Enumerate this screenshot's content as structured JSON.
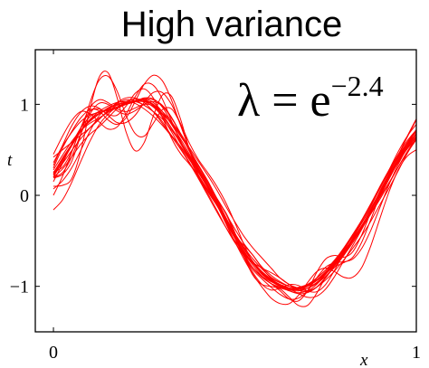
{
  "chart_data": {
    "type": "line",
    "title": "High variance",
    "xlabel": "x",
    "ylabel": "t",
    "xlim": [
      -0.05,
      1.0
    ],
    "ylim": [
      -1.5,
      1.6
    ],
    "xticks": [
      {
        "value": 0,
        "label": "0"
      },
      {
        "value": 1,
        "label": "1"
      }
    ],
    "yticks": [
      {
        "value": 1,
        "label": "1"
      },
      {
        "value": 0,
        "label": "0"
      },
      {
        "value": -1,
        "label": "−1"
      }
    ],
    "annotation": {
      "base": "λ = e",
      "exponent": "−2.4"
    },
    "grid": false,
    "legend": "none",
    "line_color": "#ff0000",
    "series_count": 20,
    "x": [
      0.0,
      0.025,
      0.05,
      0.075,
      0.1,
      0.125,
      0.15,
      0.175,
      0.2,
      0.225,
      0.25,
      0.275,
      0.3,
      0.325,
      0.35,
      0.375,
      0.4,
      0.425,
      0.45,
      0.475,
      0.5,
      0.525,
      0.55,
      0.575,
      0.6,
      0.625,
      0.65,
      0.675,
      0.7,
      0.725,
      0.75,
      0.775,
      0.8,
      0.825,
      0.85,
      0.875,
      0.9,
      0.925,
      0.95,
      0.975,
      1.0
    ],
    "series": [
      {
        "values": [
          0.22,
          0.39,
          0.55,
          0.7,
          0.83,
          0.9,
          0.95,
          1.01,
          1.05,
          1.04,
          0.99,
          0.92,
          0.81,
          0.66,
          0.54,
          0.4,
          0.2,
          0.04,
          -0.11,
          -0.27,
          -0.44,
          -0.55,
          -0.66,
          -0.8,
          -0.91,
          -0.96,
          -1.0,
          -1.02,
          -1.0,
          -0.93,
          -0.85,
          -0.77,
          -0.66,
          -0.47,
          -0.28,
          -0.1,
          0.08,
          0.28,
          0.48,
          0.65,
          0.78
        ]
      },
      {
        "values": [
          0.2,
          0.29,
          0.42,
          0.56,
          0.67,
          0.75,
          0.85,
          0.95,
          1.01,
          1.04,
          1.05,
          0.99,
          0.89,
          0.8,
          0.68,
          0.52,
          0.37,
          0.22,
          0.06,
          -0.12,
          -0.29,
          -0.45,
          -0.58,
          -0.69,
          -0.8,
          -0.91,
          -0.98,
          -1.02,
          -1.05,
          -1.01,
          -0.93,
          -0.83,
          -0.71,
          -0.58,
          -0.44,
          -0.28,
          -0.1,
          0.08,
          0.27,
          0.46,
          0.62
        ]
      },
      {
        "values": [
          0.24,
          0.41,
          0.56,
          0.71,
          0.81,
          0.89,
          0.96,
          1.0,
          1.02,
          1.03,
          0.99,
          0.92,
          0.84,
          0.72,
          0.58,
          0.43,
          0.27,
          0.1,
          -0.08,
          -0.25,
          -0.42,
          -0.57,
          -0.7,
          -0.81,
          -0.9,
          -0.96,
          -1.0,
          -1.02,
          -0.99,
          -0.93,
          -0.84,
          -0.72,
          -0.58,
          -0.43,
          -0.27,
          -0.09,
          0.09,
          0.26,
          0.42,
          0.57,
          0.7
        ]
      },
      {
        "values": [
          0.23,
          0.35,
          0.49,
          0.62,
          0.74,
          0.84,
          0.92,
          0.99,
          1.03,
          1.06,
          1.04,
          0.99,
          0.9,
          0.79,
          0.65,
          0.5,
          0.33,
          0.16,
          -0.03,
          -0.2,
          -0.37,
          -0.53,
          -0.66,
          -0.79,
          -0.88,
          -0.95,
          -1.0,
          -1.02,
          -1.02,
          -0.97,
          -0.89,
          -0.79,
          -0.66,
          -0.52,
          -0.36,
          -0.2,
          -0.02,
          0.14,
          0.31,
          0.47,
          0.61
        ]
      },
      {
        "values": [
          -0.16,
          -0.05,
          0.14,
          0.37,
          0.59,
          0.77,
          0.89,
          0.97,
          1.01,
          1.03,
          1.03,
          1.0,
          0.92,
          0.81,
          0.66,
          0.49,
          0.3,
          0.12,
          -0.07,
          -0.25,
          -0.43,
          -0.59,
          -0.73,
          -0.85,
          -0.94,
          -1.0,
          -1.04,
          -1.05,
          -1.02,
          -0.96,
          -0.86,
          -0.74,
          -0.6,
          -0.45,
          -0.27,
          -0.09,
          0.1,
          0.28,
          0.44,
          0.57,
          0.67
        ]
      },
      {
        "values": [
          0.19,
          0.23,
          0.37,
          0.66,
          1.01,
          1.26,
          1.31,
          1.15,
          0.88,
          0.68,
          0.65,
          0.79,
          0.94,
          0.95,
          0.78,
          0.5,
          0.25,
          0.1,
          -0.03,
          -0.2,
          -0.43,
          -0.64,
          -0.8,
          -0.9,
          -0.97,
          -1.05,
          -1.14,
          -1.16,
          -1.05,
          -0.85,
          -0.7,
          -0.66,
          -0.68,
          -0.62,
          -0.43,
          -0.18,
          0.05,
          0.24,
          0.44,
          0.65,
          0.84
        ]
      },
      {
        "values": [
          0.0,
          0.21,
          0.47,
          0.73,
          0.92,
          0.95,
          0.89,
          0.88,
          0.98,
          1.12,
          1.17,
          1.07,
          0.86,
          0.63,
          0.46,
          0.34,
          0.21,
          0.06,
          -0.1,
          -0.28,
          -0.47,
          -0.67,
          -0.85,
          -0.98,
          -1.04,
          -1.02,
          -0.98,
          -0.99,
          -1.05,
          -1.06,
          -0.98,
          -0.82,
          -0.64,
          -0.47,
          -0.3,
          -0.12,
          0.08,
          0.27,
          0.45,
          0.6,
          0.72
        ]
      },
      {
        "values": [
          0.42,
          0.5,
          0.58,
          0.66,
          0.74,
          0.83,
          0.93,
          1.02,
          1.07,
          1.07,
          1.02,
          0.92,
          0.79,
          0.65,
          0.51,
          0.36,
          0.19,
          0.02,
          -0.16,
          -0.35,
          -0.52,
          -0.65,
          -0.74,
          -0.8,
          -0.85,
          -0.91,
          -0.98,
          -1.04,
          -1.06,
          -1.01,
          -0.91,
          -0.77,
          -0.63,
          -0.49,
          -0.35,
          -0.2,
          -0.04,
          0.13,
          0.31,
          0.48,
          0.63
        ]
      },
      {
        "values": [
          0.07,
          0.16,
          0.3,
          0.49,
          0.7,
          0.87,
          0.96,
          0.99,
          1.0,
          1.03,
          1.07,
          1.06,
          0.97,
          0.8,
          0.6,
          0.4,
          0.22,
          0.06,
          -0.11,
          -0.28,
          -0.47,
          -0.65,
          -0.8,
          -0.9,
          -0.97,
          -1.01,
          -1.05,
          -1.07,
          -1.05,
          -0.98,
          -0.87,
          -0.73,
          -0.59,
          -0.45,
          -0.3,
          -0.14,
          0.04,
          0.22,
          0.41,
          0.58,
          0.72
        ]
      },
      {
        "values": [
          0.25,
          0.4,
          0.56,
          0.71,
          0.83,
          0.92,
          0.98,
          1.02,
          1.03,
          1.01,
          0.95,
          0.87,
          0.77,
          0.65,
          0.51,
          0.35,
          0.18,
          0.0,
          -0.18,
          -0.35,
          -0.5,
          -0.63,
          -0.74,
          -0.84,
          -0.93,
          -0.99,
          -1.03,
          -1.03,
          -1.0,
          -0.93,
          -0.84,
          -0.74,
          -0.63,
          -0.5,
          -0.35,
          -0.17,
          0.01,
          0.19,
          0.36,
          0.51,
          0.62
        ]
      },
      {
        "values": [
          0.3,
          0.52,
          0.7,
          0.85,
          0.94,
          0.93,
          0.83,
          0.78,
          0.85,
          1.03,
          1.22,
          1.32,
          1.26,
          1.05,
          0.77,
          0.51,
          0.29,
          0.1,
          -0.09,
          -0.3,
          -0.51,
          -0.7,
          -0.87,
          -1.01,
          -1.13,
          -1.19,
          -1.19,
          -1.1,
          -0.96,
          -0.84,
          -0.8,
          -0.84,
          -0.9,
          -0.9,
          -0.79,
          -0.55,
          -0.25,
          0.04,
          0.28,
          0.43,
          0.5
        ]
      },
      {
        "values": [
          0.33,
          0.55,
          0.76,
          0.91,
          0.98,
          0.96,
          0.88,
          0.8,
          0.8,
          0.88,
          1.02,
          1.13,
          1.13,
          1.0,
          0.79,
          0.57,
          0.39,
          0.25,
          0.1,
          -0.08,
          -0.3,
          -0.54,
          -0.74,
          -0.87,
          -0.94,
          -0.98,
          -1.02,
          -1.08,
          -1.12,
          -1.11,
          -1.03,
          -0.89,
          -0.72,
          -0.55,
          -0.37,
          -0.19,
          -0.01,
          0.18,
          0.37,
          0.55,
          0.72
        ]
      },
      {
        "values": [
          0.26,
          0.31,
          0.48,
          0.74,
          0.96,
          1.05,
          1.02,
          0.95,
          0.92,
          0.96,
          1.0,
          0.98,
          0.86,
          0.7,
          0.53,
          0.39,
          0.25,
          0.09,
          -0.1,
          -0.31,
          -0.51,
          -0.67,
          -0.8,
          -0.89,
          -0.95,
          -1.0,
          -1.05,
          -1.08,
          -1.07,
          -1.01,
          -0.9,
          -0.77,
          -0.63,
          -0.49,
          -0.35,
          -0.19,
          -0.01,
          0.19,
          0.39,
          0.57,
          0.72
        ]
      },
      {
        "values": [
          0.2,
          0.37,
          0.54,
          0.7,
          0.82,
          0.9,
          0.94,
          0.97,
          1.0,
          1.03,
          1.06,
          1.05,
          0.99,
          0.86,
          0.68,
          0.48,
          0.28,
          0.1,
          -0.07,
          -0.25,
          -0.42,
          -0.58,
          -0.73,
          -0.85,
          -0.94,
          -1.0,
          -1.02,
          -1.01,
          -0.98,
          -0.93,
          -0.86,
          -0.77,
          -0.65,
          -0.5,
          -0.34,
          -0.16,
          0.03,
          0.21,
          0.37,
          0.52,
          0.64
        ]
      },
      {
        "values": [
          0.1,
          0.11,
          0.18,
          0.48,
          0.93,
          1.29,
          1.35,
          1.08,
          0.7,
          0.49,
          0.58,
          0.87,
          1.1,
          1.09,
          0.84,
          0.5,
          0.22,
          0.05,
          -0.06,
          -0.19,
          -0.41,
          -0.67,
          -0.88,
          -0.98,
          -1.0,
          -1.03,
          -1.12,
          -1.21,
          -1.21,
          -1.08,
          -0.9,
          -0.79,
          -0.74,
          -0.68,
          -0.51,
          -0.26,
          0.0,
          0.23,
          0.44,
          0.64,
          0.83
        ]
      },
      {
        "values": [
          0.45,
          0.65,
          0.82,
          0.92,
          0.9,
          0.81,
          0.73,
          0.75,
          0.89,
          1.08,
          1.22,
          1.21,
          1.06,
          0.82,
          0.59,
          0.42,
          0.28,
          0.14,
          -0.04,
          -0.25,
          -0.47,
          -0.67,
          -0.82,
          -0.92,
          -1.01,
          -1.09,
          -1.14,
          -1.13,
          -1.05,
          -0.91,
          -0.79,
          -0.74,
          -0.73,
          -0.7,
          -0.58,
          -0.38,
          -0.13,
          0.12,
          0.34,
          0.52,
          0.65
        ]
      },
      {
        "values": [
          0.2,
          0.25,
          0.42,
          0.67,
          0.89,
          1.01,
          1.0,
          0.93,
          0.89,
          0.93,
          1.0,
          1.03,
          0.98,
          0.85,
          0.68,
          0.5,
          0.32,
          0.14,
          -0.05,
          -0.24,
          -0.43,
          -0.59,
          -0.73,
          -0.84,
          -0.93,
          -0.99,
          -1.02,
          -1.02,
          -0.98,
          -0.91,
          -0.82,
          -0.72,
          -0.61,
          -0.48,
          -0.33,
          -0.16,
          0.03,
          0.21,
          0.39,
          0.55,
          0.68
        ]
      },
      {
        "values": [
          0.36,
          0.54,
          0.69,
          0.81,
          0.88,
          0.91,
          0.93,
          0.96,
          1.0,
          1.04,
          1.05,
          1.0,
          0.89,
          0.74,
          0.57,
          0.41,
          0.25,
          0.08,
          -0.1,
          -0.29,
          -0.47,
          -0.62,
          -0.75,
          -0.84,
          -0.92,
          -0.98,
          -1.02,
          -1.04,
          -1.02,
          -0.96,
          -0.87,
          -0.75,
          -0.62,
          -0.48,
          -0.33,
          -0.16,
          0.02,
          0.2,
          0.38,
          0.54,
          0.68
        ]
      },
      {
        "values": [
          0.15,
          0.35,
          0.56,
          0.74,
          0.86,
          0.92,
          0.94,
          0.96,
          1.0,
          1.04,
          1.06,
          1.02,
          0.92,
          0.78,
          0.62,
          0.45,
          0.27,
          0.09,
          -0.1,
          -0.29,
          -0.47,
          -0.63,
          -0.77,
          -0.89,
          -0.97,
          -1.02,
          -1.04,
          -1.03,
          -0.98,
          -0.91,
          -0.82,
          -0.71,
          -0.58,
          -0.43,
          -0.27,
          -0.1,
          0.08,
          0.26,
          0.43,
          0.58,
          0.71
        ]
      },
      {
        "values": [
          0.28,
          0.44,
          0.59,
          0.71,
          0.79,
          0.85,
          0.91,
          0.97,
          1.02,
          1.04,
          1.03,
          0.97,
          0.87,
          0.74,
          0.59,
          0.43,
          0.26,
          0.09,
          -0.09,
          -0.27,
          -0.45,
          -0.61,
          -0.75,
          -0.86,
          -0.94,
          -0.99,
          -1.02,
          -1.02,
          -1.0,
          -0.94,
          -0.86,
          -0.76,
          -0.63,
          -0.49,
          -0.33,
          -0.16,
          0.02,
          0.2,
          0.37,
          0.53,
          0.67
        ]
      }
    ]
  }
}
